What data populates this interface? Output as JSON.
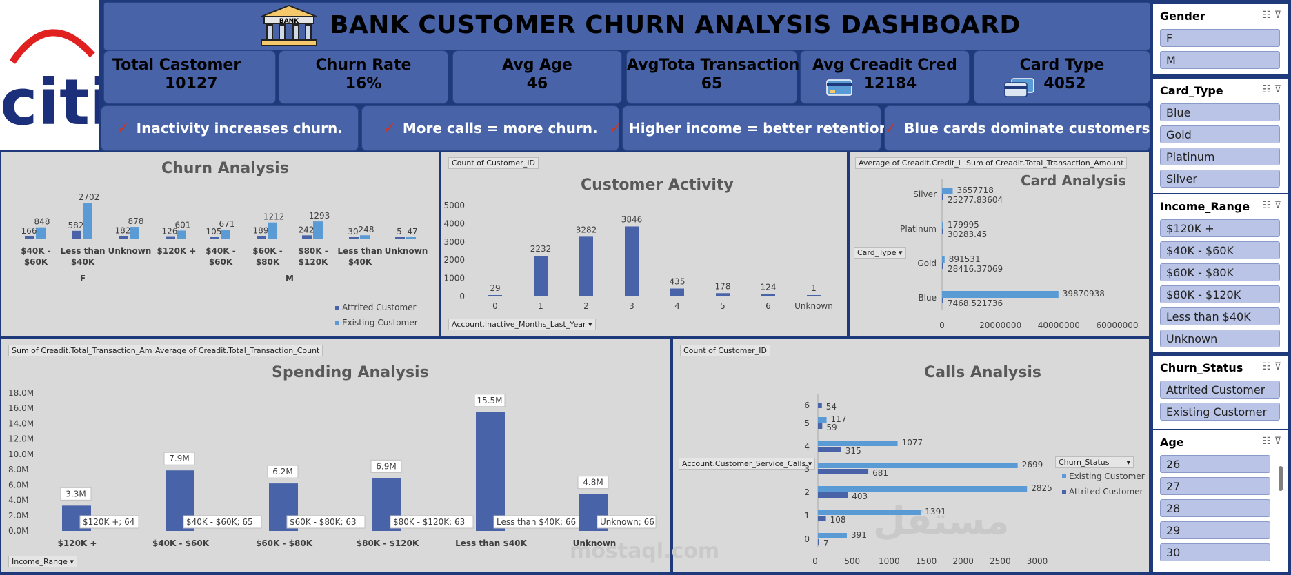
{
  "header": {
    "title": "BANK CUSTOMER CHURN ANALYSIS DASHBOARD",
    "bank_icon_label": "BANK",
    "logo_text": "citi"
  },
  "kpis": [
    {
      "label": "Total Castomer",
      "value": "10127"
    },
    {
      "label": "Churn Rate",
      "value": "16%"
    },
    {
      "label": "Avg Age",
      "value": "46"
    },
    {
      "label": "AvgTota Transaction",
      "value": "65"
    },
    {
      "label": "Avg Creadit Cred",
      "value": "12184"
    },
    {
      "label": "Card Type",
      "value": "4052"
    }
  ],
  "insights": [
    "Inactivity increases churn.",
    "More calls = more churn.",
    "Higher income = better retention.",
    "Blue cards dominate customers"
  ],
  "churn_panel": {
    "title": "Churn Analysis",
    "gender_labels": [
      "F",
      "M"
    ]
  },
  "activity_panel": {
    "title": "Customer Activity",
    "value_tag": "Count of Customer_ID",
    "axis_tag": "Account.Inactive_Months_Last_Year"
  },
  "card_panel": {
    "title": "Card Analysis",
    "tags": [
      "Average of Creadit.Credit_Limit",
      "Sum of Creadit.Total_Transaction_Amount"
    ],
    "filter_tag": "Card_Type"
  },
  "spending_panel": {
    "title": "Spending Analysis",
    "tags": [
      "Sum of Creadit.Total_Transaction_Amount",
      "Average of Creadit.Total_Transaction_Count"
    ],
    "filter_tag": "Income_Range"
  },
  "calls_panel": {
    "title": "Calls Analysis",
    "value_tag": "Count of Customer_ID",
    "axis_tag": "Account.Customer_Service_Calls",
    "legend_tag": "Churn_Status"
  },
  "slicers": [
    {
      "header": "Gender",
      "items": [
        "F",
        "M"
      ]
    },
    {
      "header": "Card_Type",
      "items": [
        "Blue",
        "Gold",
        "Platinum",
        "Silver"
      ]
    },
    {
      "header": "Income_Range",
      "items": [
        "$120K +",
        "$40K - $60K",
        "$60K - $80K",
        "$80K - $120K",
        "Less than $40K",
        "Unknown"
      ]
    },
    {
      "header": "Churn_Status",
      "items": [
        "Attrited Customer",
        "Existing Customer"
      ]
    },
    {
      "header": "Age",
      "items": [
        "26",
        "27",
        "28",
        "29",
        "30"
      ]
    }
  ],
  "watermark": {
    "line1": "مستقل",
    "line2": "mostaql.com"
  },
  "colors": {
    "dark_blue": "#4863a8",
    "light_blue": "#5b9bd5",
    "panel": "#d9d9d9",
    "header": "#4863a8"
  },
  "chart_data": [
    {
      "type": "bar",
      "title": "Churn Analysis",
      "categories": [
        "$40K - $60K",
        "Less than $40K",
        "Unknown",
        "$120K +",
        "$40K - $60K",
        "$60K - $80K",
        "$80K - $120K",
        "Less than $40K",
        "Unknown"
      ],
      "groups": [
        "F",
        "F",
        "F",
        "M",
        "M",
        "M",
        "M",
        "M",
        "M"
      ],
      "series": [
        {
          "name": "Attrited Customer",
          "values": [
            166,
            582,
            182,
            126,
            105,
            189,
            242,
            30,
            5
          ]
        },
        {
          "name": "Existing Customer",
          "values": [
            848,
            2702,
            878,
            601,
            671,
            1212,
            1293,
            248,
            47
          ]
        }
      ],
      "legend": "bottom-right"
    },
    {
      "type": "bar",
      "title": "Customer Activity",
      "xlabel": "Account.Inactive_Months_Last_Year",
      "categories": [
        "0",
        "1",
        "2",
        "3",
        "4",
        "5",
        "6",
        "Unknown"
      ],
      "values": [
        29,
        2232,
        3282,
        3846,
        435,
        178,
        124,
        1
      ],
      "ylim": [
        0,
        5000
      ],
      "yticks": [
        0,
        1000,
        2000,
        3000,
        4000,
        5000
      ]
    },
    {
      "type": "bar",
      "orientation": "horizontal",
      "title": "Card Analysis",
      "categories": [
        "Silver",
        "Platinum",
        "Gold",
        "Blue"
      ],
      "series": [
        {
          "name": "Sum of Creadit.Total_Transaction_Amount",
          "values": [
            3657718,
            179995,
            891531,
            39870938
          ]
        },
        {
          "name": "Average of Creadit.Credit_Limit",
          "values": [
            25277.83604,
            30283.45,
            28416.37069,
            7468.521736
          ]
        }
      ],
      "xlim": [
        0,
        60000000
      ],
      "xticks": [
        0,
        20000000,
        40000000,
        60000000
      ]
    },
    {
      "type": "bar",
      "title": "Spending Analysis",
      "categories": [
        "$120K +",
        "$40K - $60K",
        "$60K - $80K",
        "$80K - $120K",
        "Less than $40K",
        "Unknown"
      ],
      "values": [
        3.3,
        7.9,
        6.2,
        6.9,
        15.5,
        4.8
      ],
      "value_labels": [
        "3.3M",
        "7.9M",
        "6.2M",
        "6.9M",
        "15.5M",
        "4.8M"
      ],
      "count_labels": [
        "$120K +; 64",
        "$40K - $60K; 65",
        "$60K - $80K; 63",
        "$80K - $120K; 63",
        "Less than $40K; 66",
        "Unknown; 66"
      ],
      "ylim": [
        0,
        18
      ],
      "yticks": [
        "0.0M",
        "2.0M",
        "4.0M",
        "6.0M",
        "8.0M",
        "10.0M",
        "12.0M",
        "14.0M",
        "16.0M",
        "18.0M"
      ]
    },
    {
      "type": "bar",
      "orientation": "horizontal",
      "title": "Calls Analysis",
      "categories": [
        "0",
        "1",
        "2",
        "3",
        "4",
        "5",
        "6"
      ],
      "series": [
        {
          "name": "Existing Customer",
          "values": [
            391,
            1391,
            2825,
            2699,
            1077,
            117,
            null
          ]
        },
        {
          "name": "Attrited Customer",
          "values": [
            7,
            108,
            403,
            681,
            315,
            59,
            54
          ]
        }
      ],
      "xlim": [
        0,
        3000
      ],
      "xticks": [
        0,
        500,
        1000,
        1500,
        2000,
        2500,
        3000
      ],
      "legend": "right"
    }
  ]
}
